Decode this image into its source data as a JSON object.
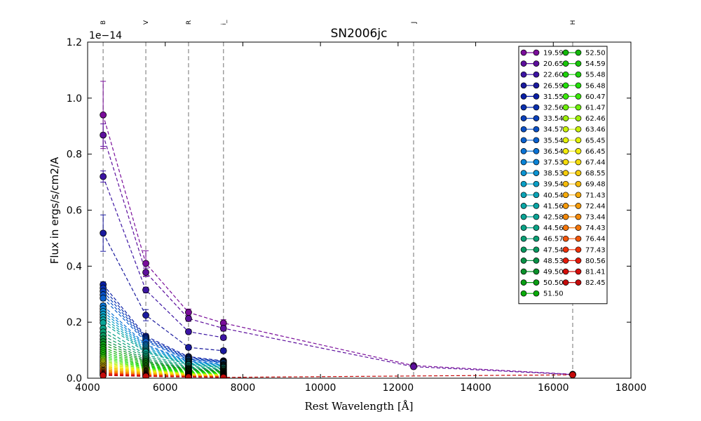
{
  "chart_data": {
    "type": "scatter",
    "title": "SN2006jc",
    "xlabel": "Rest Wavelength [Å]",
    "ylabel": "Flux in ergs/s/cm2/A",
    "y_offset_label": "1e−14",
    "xlim": [
      4000,
      18000
    ],
    "ylim": [
      0.0,
      1.2
    ],
    "x_ticks": [
      4000,
      6000,
      8000,
      10000,
      12000,
      14000,
      16000,
      18000
    ],
    "x_tick_labels": [
      "4000",
      "6000",
      "8000",
      "10000",
      "12000",
      "14000",
      "16000",
      "18000"
    ],
    "y_ticks": [
      0.0,
      0.2,
      0.4,
      0.6,
      0.8,
      1.0,
      1.2
    ],
    "y_tick_labels": [
      "0.0",
      "0.2",
      "0.4",
      "0.6",
      "0.8",
      "1.0",
      "1.2"
    ],
    "bands": [
      {
        "name": "B",
        "x": 4400
      },
      {
        "name": "V",
        "x": 5500
      },
      {
        "name": "R",
        "x": 6600
      },
      {
        "name": "i_",
        "x": 7500
      },
      {
        "name": "J",
        "x": 12400
      },
      {
        "name": "H",
        "x": 16500
      }
    ],
    "legend_position": "upper right",
    "legend_columns": 2,
    "grid": false,
    "series": [
      {
        "name": "19.59",
        "color": "#7a0d9a",
        "x": [
          4400,
          5500,
          6600,
          7500,
          12400,
          16500
        ],
        "y": [
          0.94,
          0.41,
          0.235,
          0.197,
          0.045,
          0.014
        ],
        "yerr": [
          0.12,
          0.045,
          0.012,
          0.012,
          0.005,
          0.003
        ]
      },
      {
        "name": "20.65",
        "color": "#5d0f9d",
        "x": [
          4400,
          5500,
          6600,
          7500,
          12400,
          16500
        ],
        "y": [
          0.868,
          0.378,
          0.213,
          0.178,
          0.041,
          0.013
        ],
        "yerr": [
          0.04,
          0.015,
          0.01,
          0.01,
          0.004,
          0.003
        ]
      },
      {
        "name": "22.60",
        "color": "#3c14a3",
        "x": [
          4400,
          5500,
          6600,
          7500
        ],
        "y": [
          0.72,
          0.315,
          0.166,
          0.145
        ],
        "yerr": [
          0.02,
          0.01,
          0.008,
          0.008
        ]
      },
      {
        "name": "26.59",
        "color": "#1a1a9e",
        "x": [
          4400,
          5500,
          6600,
          7500
        ],
        "y": [
          0.518,
          0.225,
          0.11,
          0.098
        ],
        "yerr": [
          0.065,
          0.02,
          0.008,
          0.008
        ]
      },
      {
        "name": "31.55",
        "color": "#0a1fa6",
        "x": [
          4400,
          5500,
          6600,
          7500
        ],
        "y": [
          0.334,
          0.15,
          0.077,
          0.062
        ],
        "yerr": [
          0.01,
          0.008,
          0.005,
          0.005
        ]
      },
      {
        "name": "32.56",
        "color": "#0a30b0",
        "x": [
          4400,
          5500,
          6600,
          7500
        ],
        "y": [
          0.322,
          0.145,
          0.074,
          0.06
        ],
        "yerr": [
          0.01,
          0.008,
          0.005,
          0.005
        ]
      },
      {
        "name": "33.54",
        "color": "#0a40bb",
        "x": [
          4400,
          5500,
          6600,
          7500
        ],
        "y": [
          0.31,
          0.14,
          0.071,
          0.058
        ],
        "yerr": [
          0.01,
          0.008,
          0.005,
          0.005
        ]
      },
      {
        "name": "34.57",
        "color": "#0b50c4",
        "x": [
          4400,
          5500,
          6600,
          7500
        ],
        "y": [
          0.298,
          0.135,
          0.068,
          0.056
        ],
        "yerr": [
          0.01,
          0.008,
          0.005,
          0.005
        ]
      },
      {
        "name": "35.54",
        "color": "#0b60cd",
        "x": [
          4400,
          5500,
          6600,
          7500
        ],
        "y": [
          0.286,
          0.13,
          0.066,
          0.054
        ],
        "yerr": [
          0.01,
          0.008,
          0.005,
          0.005
        ]
      },
      {
        "name": "36.54",
        "color": "#0b72d4",
        "x": [
          4400,
          5500,
          6600,
          7500
        ],
        "y": [
          0.258,
          0.12,
          0.062,
          0.05
        ],
        "yerr": [
          0.01,
          0.008,
          0.005,
          0.005
        ]
      },
      {
        "name": "37.53",
        "color": "#0b83d6",
        "x": [
          4400,
          5500,
          6600,
          7500
        ],
        "y": [
          0.248,
          0.115,
          0.06,
          0.048
        ],
        "yerr": [
          0.01,
          0.008,
          0.005,
          0.005
        ]
      },
      {
        "name": "38.53",
        "color": "#0b94d2",
        "x": [
          4400,
          5500,
          6600,
          7500
        ],
        "y": [
          0.238,
          0.11,
          0.057,
          0.046
        ],
        "yerr": [
          0.01,
          0.008,
          0.005,
          0.005
        ]
      },
      {
        "name": "39.54",
        "color": "#0a9fc6",
        "x": [
          4400,
          5500,
          6600,
          7500
        ],
        "y": [
          0.228,
          0.105,
          0.055,
          0.044
        ],
        "yerr": [
          0.01,
          0.008,
          0.005,
          0.005
        ]
      },
      {
        "name": "40.54",
        "color": "#0aa3b6",
        "x": [
          4400,
          5500,
          6600,
          7500
        ],
        "y": [
          0.218,
          0.1,
          0.052,
          0.042
        ],
        "yerr": [
          0.01,
          0.008,
          0.005,
          0.005
        ]
      },
      {
        "name": "41.56",
        "color": "#0aa5a5",
        "x": [
          4400,
          5500,
          6600,
          7500
        ],
        "y": [
          0.208,
          0.096,
          0.05,
          0.04
        ],
        "yerr": [
          0.01,
          0.008,
          0.005,
          0.005
        ]
      },
      {
        "name": "42.58",
        "color": "#0aa496",
        "x": [
          4400,
          5500,
          6600,
          7500
        ],
        "y": [
          0.198,
          0.092,
          0.048,
          0.038
        ],
        "yerr": [
          0.01,
          0.008,
          0.005,
          0.005
        ]
      },
      {
        "name": "44.56",
        "color": "#0aa387",
        "x": [
          4400,
          5500,
          6600,
          7500
        ],
        "y": [
          0.178,
          0.084,
          0.044,
          0.035
        ],
        "yerr": [
          0.01,
          0.008,
          0.005,
          0.005
        ]
      },
      {
        "name": "46.57",
        "color": "#0a9e74",
        "x": [
          4400,
          5500,
          6600,
          7500
        ],
        "y": [
          0.165,
          0.078,
          0.04,
          0.032
        ],
        "yerr": [
          0.01,
          0.008,
          0.005,
          0.005
        ]
      },
      {
        "name": "47.54",
        "color": "#0a9860",
        "x": [
          4400,
          5500,
          6600,
          7500
        ],
        "y": [
          0.152,
          0.072,
          0.037,
          0.03
        ],
        "yerr": [
          0.01,
          0.008,
          0.005,
          0.005
        ]
      },
      {
        "name": "48.53",
        "color": "#0a9146",
        "x": [
          4400,
          5500,
          6600,
          7500
        ],
        "y": [
          0.14,
          0.066,
          0.034,
          0.027
        ],
        "yerr": [
          0.01,
          0.008,
          0.005,
          0.005
        ]
      },
      {
        "name": "49.50",
        "color": "#0a912a",
        "x": [
          4400,
          5500,
          6600,
          7500
        ],
        "y": [
          0.13,
          0.061,
          0.032,
          0.025
        ],
        "yerr": [
          0.01,
          0.008,
          0.005,
          0.005
        ]
      },
      {
        "name": "50.50",
        "color": "#0a9e14",
        "x": [
          4400,
          5500,
          6600,
          7500
        ],
        "y": [
          0.12,
          0.057,
          0.03,
          0.023
        ],
        "yerr": [
          0.01,
          0.008,
          0.005,
          0.005
        ]
      },
      {
        "name": "51.50",
        "color": "#0aab0a",
        "x": [
          4400,
          5500,
          6600,
          7500
        ],
        "y": [
          0.11,
          0.053,
          0.028,
          0.021
        ],
        "yerr": [
          0.01,
          0.008,
          0.005,
          0.005
        ]
      },
      {
        "name": "52.50",
        "color": "#12b80a",
        "x": [
          4400,
          5500,
          6600,
          7500
        ],
        "y": [
          0.102,
          0.049,
          0.026,
          0.02
        ],
        "yerr": [
          0.01,
          0.008,
          0.005,
          0.005
        ]
      },
      {
        "name": "54.59",
        "color": "#18c60a",
        "x": [
          4400,
          5500,
          6600,
          7500
        ],
        "y": [
          0.094,
          0.045,
          0.024,
          0.018
        ],
        "yerr": [
          0.01,
          0.008,
          0.005,
          0.005
        ]
      },
      {
        "name": "55.48",
        "color": "#1dd20a",
        "x": [
          4400,
          5500,
          6600,
          7500
        ],
        "y": [
          0.087,
          0.042,
          0.022,
          0.017
        ],
        "yerr": [
          0.01,
          0.008,
          0.005,
          0.005
        ]
      },
      {
        "name": "56.48",
        "color": "#22de0a",
        "x": [
          4400,
          5500,
          6600,
          7500
        ],
        "y": [
          0.08,
          0.039,
          0.021,
          0.016
        ],
        "yerr": [
          0.01,
          0.008,
          0.005,
          0.005
        ]
      },
      {
        "name": "60.47",
        "color": "#3ae80a",
        "x": [
          4400,
          5500,
          6600,
          7500
        ],
        "y": [
          0.074,
          0.036,
          0.019,
          0.015
        ],
        "yerr": [
          0.01,
          0.008,
          0.005,
          0.005
        ]
      },
      {
        "name": "61.47",
        "color": "#6ef00a",
        "x": [
          4400,
          5500,
          6600,
          7500
        ],
        "y": [
          0.068,
          0.033,
          0.018,
          0.014
        ],
        "yerr": [
          0.01,
          0.008,
          0.005,
          0.005
        ]
      },
      {
        "name": "62.46",
        "color": "#a0f00a",
        "x": [
          4400,
          5500,
          6600,
          7500
        ],
        "y": [
          0.062,
          0.031,
          0.016,
          0.013
        ],
        "yerr": [
          0.01,
          0.008,
          0.005,
          0.005
        ]
      },
      {
        "name": "63.46",
        "color": "#c8f00a",
        "x": [
          4400,
          5500,
          6600,
          7500
        ],
        "y": [
          0.057,
          0.028,
          0.015,
          0.012
        ],
        "yerr": [
          0.01,
          0.008,
          0.005,
          0.005
        ]
      },
      {
        "name": "65.45",
        "color": "#e2f00a",
        "x": [
          4400,
          5500,
          6600,
          7500
        ],
        "y": [
          0.052,
          0.026,
          0.014,
          0.011
        ],
        "yerr": [
          0.01,
          0.008,
          0.005,
          0.005
        ]
      },
      {
        "name": "66.45",
        "color": "#f2ec0a",
        "x": [
          4400,
          5500,
          6600,
          7500
        ],
        "y": [
          0.047,
          0.024,
          0.013,
          0.01
        ],
        "yerr": [
          0.01,
          0.008,
          0.005,
          0.005
        ]
      },
      {
        "name": "67.44",
        "color": "#f5dc0a",
        "x": [
          4400,
          5500,
          6600,
          7500
        ],
        "y": [
          0.043,
          0.022,
          0.012,
          0.009
        ],
        "yerr": [
          0.01,
          0.008,
          0.005,
          0.005
        ]
      },
      {
        "name": "68.55",
        "color": "#f5cc0a",
        "x": [
          4400,
          5500,
          6600,
          7500
        ],
        "y": [
          0.039,
          0.02,
          0.011,
          0.0085
        ],
        "yerr": [
          0.01,
          0.008,
          0.005,
          0.005
        ]
      },
      {
        "name": "69.48",
        "color": "#f5bb0a",
        "x": [
          4400,
          5500,
          6600,
          7500
        ],
        "y": [
          0.035,
          0.018,
          0.01,
          0.008
        ],
        "yerr": [
          0.01,
          0.008,
          0.005,
          0.005
        ]
      },
      {
        "name": "71.43",
        "color": "#f5aa0a",
        "x": [
          4400,
          5500,
          6600,
          7500
        ],
        "y": [
          0.031,
          0.016,
          0.009,
          0.007
        ],
        "yerr": [
          0.01,
          0.008,
          0.005,
          0.005
        ]
      },
      {
        "name": "72.44",
        "color": "#f59a0a",
        "x": [
          4400,
          5500,
          6600,
          7500
        ],
        "y": [
          0.028,
          0.015,
          0.0085,
          0.0065
        ],
        "yerr": [
          0.01,
          0.008,
          0.005,
          0.005
        ]
      },
      {
        "name": "73.44",
        "color": "#f58a0a",
        "x": [
          4400,
          5500,
          6600,
          7500
        ],
        "y": [
          0.025,
          0.013,
          0.008,
          0.006
        ],
        "yerr": [
          0.01,
          0.008,
          0.005,
          0.005
        ]
      },
      {
        "name": "74.43",
        "color": "#f5760a",
        "x": [
          4400,
          5500,
          6600,
          7500
        ],
        "y": [
          0.022,
          0.012,
          0.007,
          0.0055
        ],
        "yerr": [
          0.01,
          0.008,
          0.005,
          0.005
        ]
      },
      {
        "name": "76.44",
        "color": "#f2560a",
        "x": [
          4400,
          5500,
          6600,
          7500
        ],
        "y": [
          0.019,
          0.011,
          0.0065,
          0.005
        ],
        "yerr": [
          0.01,
          0.008,
          0.005,
          0.005
        ]
      },
      {
        "name": "77.43",
        "color": "#ee320a",
        "x": [
          4400,
          5500,
          6600,
          7500
        ],
        "y": [
          0.017,
          0.01,
          0.006,
          0.0045
        ],
        "yerr": [
          0.01,
          0.008,
          0.005,
          0.005
        ]
      },
      {
        "name": "80.56",
        "color": "#e41a0a",
        "x": [
          4400,
          5500,
          6600,
          7500
        ],
        "y": [
          0.014,
          0.0085,
          0.005,
          0.004
        ],
        "yerr": [
          0.01,
          0.008,
          0.005,
          0.005
        ]
      },
      {
        "name": "81.41",
        "color": "#d40e0a",
        "x": [
          4400,
          5500,
          6600,
          7500
        ],
        "y": [
          0.012,
          0.0075,
          0.0045,
          0.0035
        ],
        "yerr": [
          0.01,
          0.008,
          0.005,
          0.005
        ]
      },
      {
        "name": "82.45",
        "color": "#c40a0a",
        "x": [
          4400,
          5500,
          6600,
          7500,
          16500
        ],
        "y": [
          0.01,
          0.0065,
          0.004,
          0.003,
          0.012
        ],
        "yerr": [
          0.01,
          0.008,
          0.005,
          0.005,
          0.003
        ]
      }
    ]
  }
}
